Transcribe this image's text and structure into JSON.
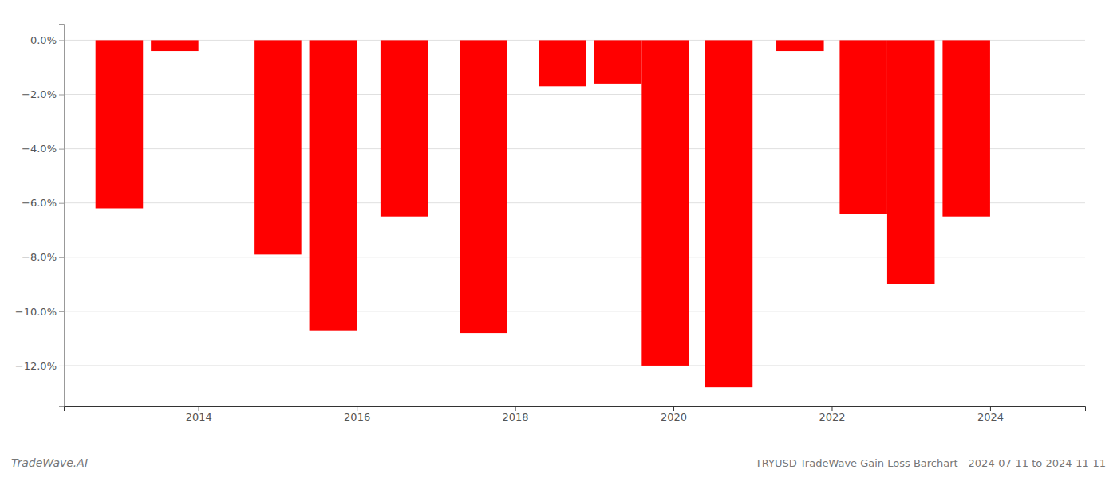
{
  "chart_data": {
    "type": "bar",
    "title": "TRYUSD TradeWave Gain Loss Barchart - 2024-07-11 to 2024-11-11",
    "annotations": [
      "TradeWave.AI"
    ],
    "x": [
      2013,
      2013.7,
      2015,
      2015.7,
      2016.6,
      2017.6,
      2018.6,
      2019.3,
      2019.9,
      2020.7,
      2021.6,
      2022.4,
      2023.0,
      2023.7
    ],
    "values": [
      -6.2,
      -0.4,
      -7.9,
      -10.7,
      -6.5,
      -10.8,
      -1.7,
      -1.6,
      -12.0,
      -12.8,
      -0.4,
      -6.4,
      -9.0,
      -6.5
    ],
    "color": "#ff0000",
    "xlim": [
      2012.3,
      2025.2
    ],
    "xticks": [
      2014,
      2016,
      2018,
      2020,
      2022,
      2024
    ],
    "ylim": [
      -13.5,
      0.6
    ],
    "yticks": [
      {
        "value": -12,
        "label": "−12.0%"
      },
      {
        "value": -10,
        "label": "−10.0%"
      },
      {
        "value": -8,
        "label": "−8.0%"
      },
      {
        "value": -6,
        "label": "−6.0%"
      },
      {
        "value": -4,
        "label": "−4.0%"
      },
      {
        "value": -2,
        "label": "−2.0%"
      },
      {
        "value": 0,
        "label": "0.0%"
      }
    ],
    "grid": true
  }
}
